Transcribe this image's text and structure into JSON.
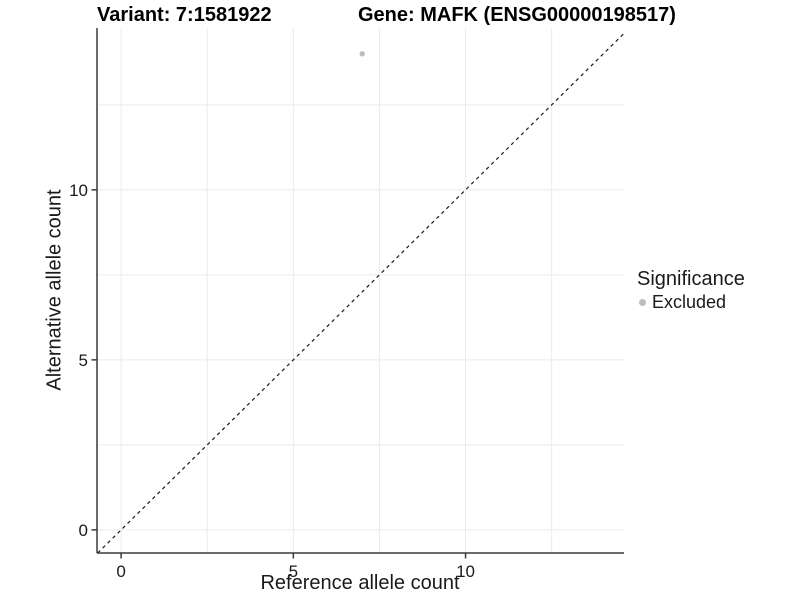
{
  "chart_data": {
    "type": "scatter",
    "title_left": "Variant: 7:1581922",
    "title_right": "Gene: MAFK (ENSG00000198517)",
    "xlabel": "Reference allele count",
    "ylabel": "Alternative allele count",
    "xlim": [
      -0.7,
      14.6
    ],
    "ylim": [
      -0.68,
      14.76
    ],
    "xticks": [
      0,
      5,
      10
    ],
    "yticks": [
      0,
      5,
      10
    ],
    "x_minor_gridlines": [
      2.5,
      7.5,
      12.5
    ],
    "y_minor_gridlines": [
      2.5,
      7.5,
      12.5
    ],
    "grid": true,
    "legend_position": "right",
    "series": [
      {
        "name": "Excluded",
        "color": "#bdbdbd",
        "points": [
          {
            "x": 7,
            "y": 14
          }
        ]
      }
    ],
    "reference_line": {
      "type": "identity",
      "equation": "y = x",
      "style": "dashed",
      "color": "#1a1a1a"
    },
    "colors": {
      "axis": "#3a3a3a",
      "grid": "#ebebeb",
      "tick_text": "#1a1a1a",
      "point": "#bdbdbd"
    }
  },
  "legend": {
    "title": "Significance",
    "items": [
      {
        "label": "Excluded",
        "color": "#bdbdbd"
      }
    ]
  }
}
